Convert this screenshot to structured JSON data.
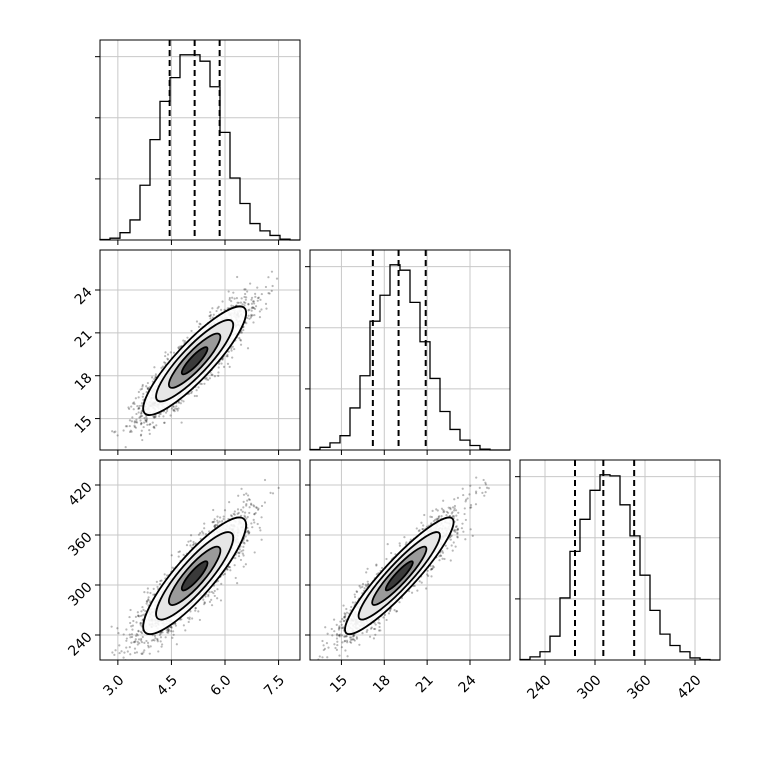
{
  "chart_data": [
    {
      "type": "histogram",
      "panel": "hist-param-1",
      "x_range": [
        2.5,
        8.1
      ],
      "bin_edges": [
        2.5,
        2.78,
        3.06,
        3.34,
        3.62,
        3.9,
        4.18,
        4.46,
        4.74,
        5.02,
        5.3,
        5.58,
        5.86,
        6.14,
        6.42,
        6.7,
        6.98,
        7.26,
        7.54,
        7.82,
        8.1
      ],
      "counts": [
        0.5,
        2,
        8,
        22,
        60,
        110,
        152,
        178,
        203,
        203,
        196,
        168,
        118,
        68,
        40,
        18,
        10,
        5,
        1,
        0
      ],
      "quantiles": [
        4.45,
        5.15,
        5.85
      ],
      "grid": true
    },
    {
      "type": "histogram",
      "panel": "hist-param-2",
      "x_range": [
        12.8,
        26.8
      ],
      "bin_edges": [
        12.8,
        13.5,
        14.2,
        14.9,
        15.6,
        16.3,
        17.0,
        17.7,
        18.4,
        19.1,
        19.8,
        20.5,
        21.2,
        21.9,
        22.6,
        23.3,
        24.0,
        24.7,
        25.4,
        26.1,
        26.8
      ],
      "counts": [
        0.5,
        3,
        8,
        16,
        47,
        83,
        144,
        173,
        207,
        201,
        165,
        121,
        80,
        43,
        23,
        11,
        5,
        1,
        0,
        0
      ],
      "quantiles": [
        17.2,
        19.0,
        20.9
      ],
      "grid": true
    },
    {
      "type": "histogram",
      "panel": "hist-param-3",
      "x_range": [
        210,
        450
      ],
      "bin_edges": [
        210,
        222,
        234,
        246,
        258,
        270,
        282,
        294,
        306,
        318,
        330,
        342,
        354,
        366,
        378,
        390,
        402,
        414,
        426,
        438,
        450
      ],
      "counts": [
        0.5,
        3,
        8,
        23,
        60,
        105,
        136,
        164,
        179,
        178,
        150,
        120,
        82,
        48,
        25,
        14,
        8,
        2,
        0.5,
        0
      ],
      "quantiles": [
        276,
        310,
        347
      ],
      "x_ticks": [
        "240",
        "300",
        "360",
        "420"
      ],
      "grid": true
    },
    {
      "type": "scatter",
      "panel": "joint-param-1-param-2",
      "x_range": [
        2.5,
        8.1
      ],
      "y_range": [
        12.8,
        26.8
      ],
      "center": [
        5.15,
        19.05
      ],
      "sigma": [
        0.72,
        1.9
      ],
      "correlation": 0.88,
      "y_ticks": [
        "15",
        "18",
        "21",
        "24"
      ],
      "contours": true,
      "grid": true
    },
    {
      "type": "scatter",
      "panel": "joint-param-1-param-3",
      "x_range": [
        2.5,
        8.1
      ],
      "y_range": [
        210,
        450
      ],
      "center": [
        5.15,
        311
      ],
      "sigma": [
        0.72,
        35
      ],
      "correlation": 0.87,
      "x_ticks": [
        "3.0",
        "4.5",
        "6.0",
        "7.5"
      ],
      "y_ticks": [
        "240",
        "300",
        "360",
        "420"
      ],
      "contours": true,
      "grid": true
    },
    {
      "type": "scatter",
      "panel": "joint-param-2-param-3",
      "x_range": [
        12.8,
        26.8
      ],
      "y_range": [
        210,
        450
      ],
      "center": [
        19.05,
        311
      ],
      "sigma": [
        1.9,
        35
      ],
      "correlation": 0.92,
      "x_ticks": [
        "15",
        "18",
        "21",
        "24"
      ],
      "contours": true,
      "grid": true
    }
  ]
}
